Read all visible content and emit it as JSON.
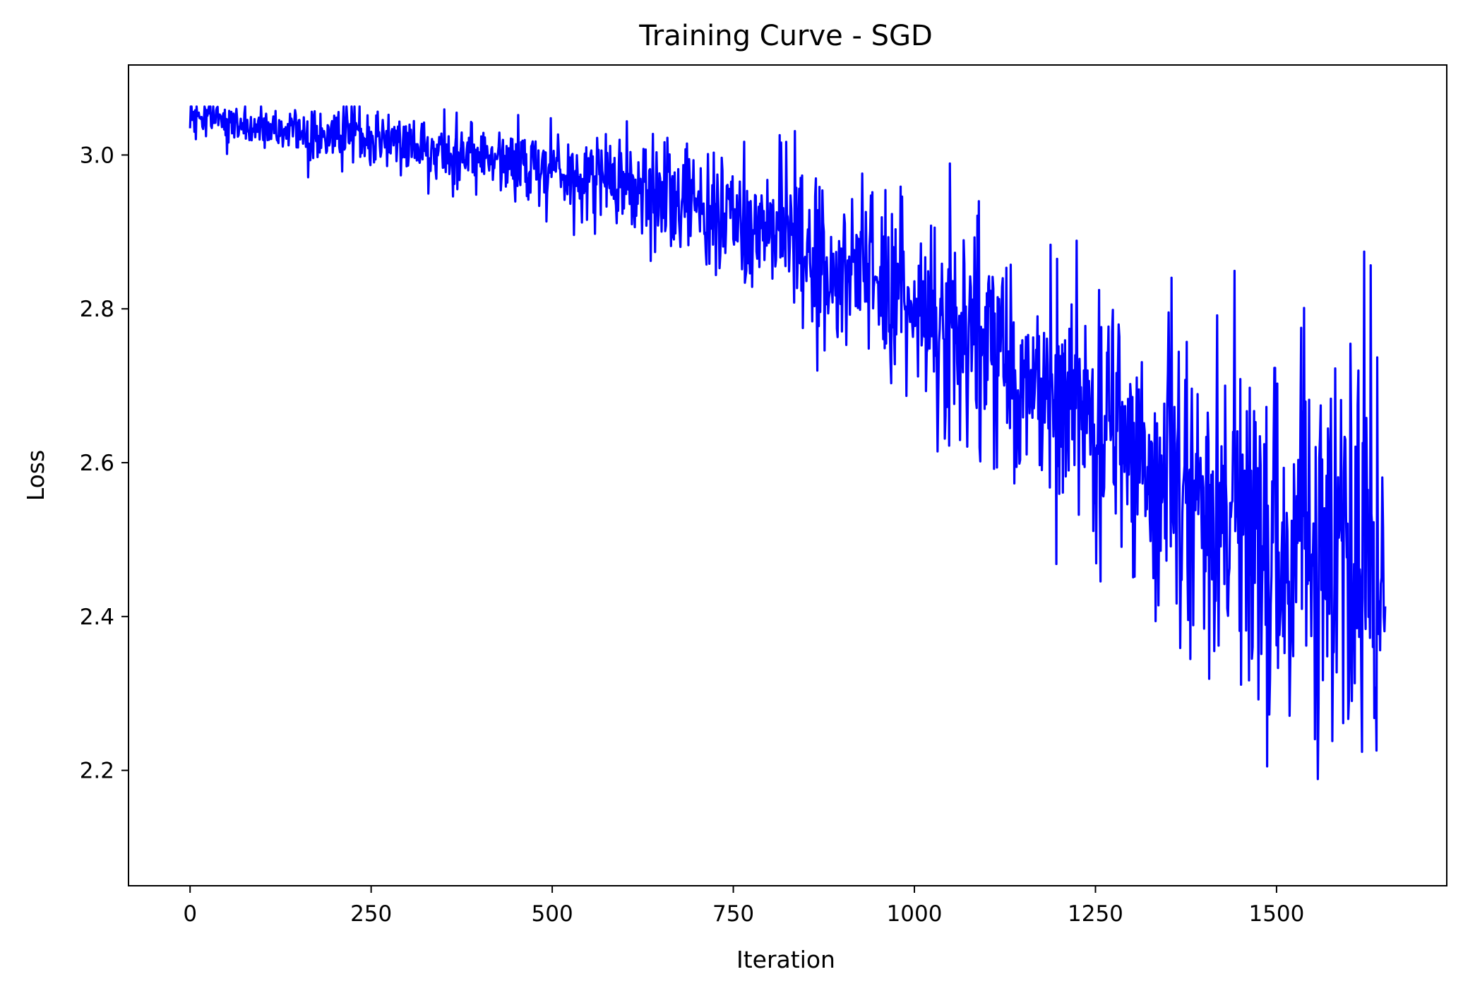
{
  "chart_data": {
    "type": "line",
    "title": "Training Curve - SGD",
    "xlabel": "Iteration",
    "ylabel": "Loss",
    "xlim": [
      -85,
      1735
    ],
    "ylim": [
      2.05,
      3.117
    ],
    "x_ticks": [
      0,
      250,
      500,
      750,
      1000,
      1250,
      1500
    ],
    "x_tick_labels": [
      "0",
      "250",
      "500",
      "750",
      "1000",
      "1250",
      "1500"
    ],
    "y_ticks": [
      2.2,
      2.4,
      2.6,
      2.8,
      3.0
    ],
    "y_tick_labels": [
      "2.2",
      "2.4",
      "2.6",
      "2.8",
      "3.0"
    ],
    "grid": false,
    "series": [
      {
        "color": "#0000ff",
        "x_start": 0,
        "x_step": 1,
        "count": 1651,
        "trend": [
          [
            0,
            3.045
          ],
          [
            250,
            3.02
          ],
          [
            500,
            2.985
          ],
          [
            750,
            2.92
          ],
          [
            1000,
            2.81
          ],
          [
            1100,
            2.74
          ],
          [
            1250,
            2.66
          ],
          [
            1400,
            2.56
          ],
          [
            1500,
            2.52
          ],
          [
            1650,
            2.47
          ]
        ],
        "noise": [
          [
            0,
            0.012
          ],
          [
            250,
            0.018
          ],
          [
            500,
            0.025
          ],
          [
            750,
            0.04
          ],
          [
            1000,
            0.06
          ],
          [
            1250,
            0.09
          ],
          [
            1500,
            0.13
          ],
          [
            1650,
            0.16
          ]
        ],
        "min_value": 2.105,
        "max_value": 3.063
      }
    ]
  }
}
